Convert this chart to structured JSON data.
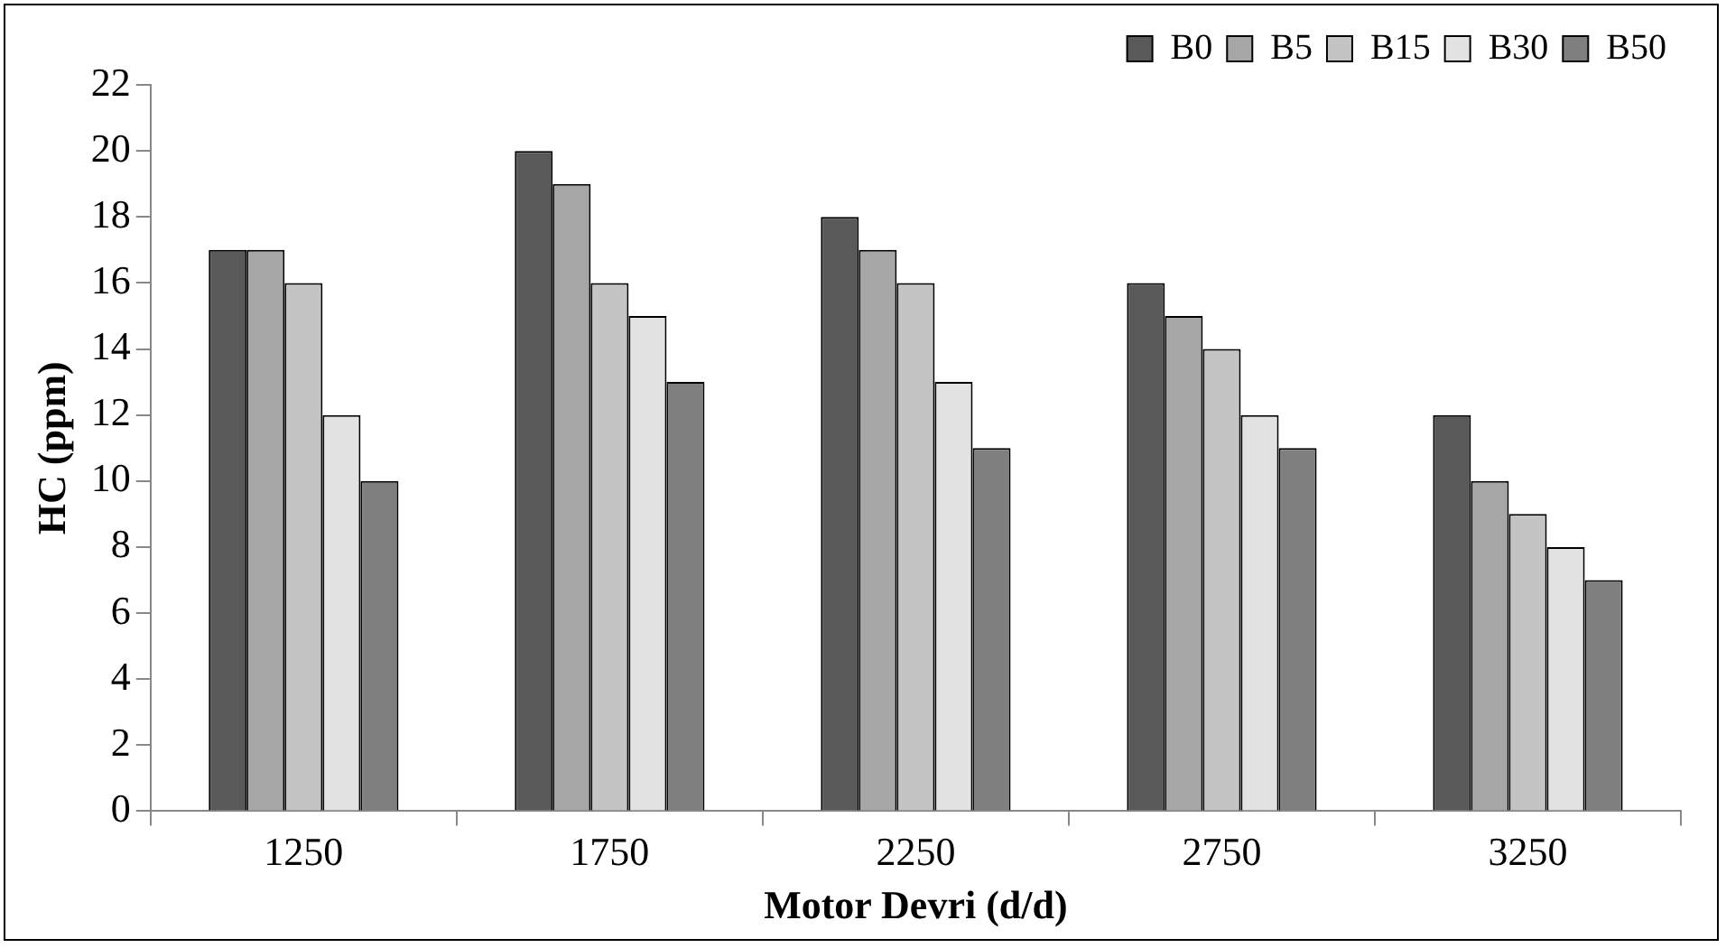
{
  "chart_data": {
    "type": "bar",
    "xlabel": "Motor Devri (d/d)",
    "ylabel": "HC (ppm)",
    "categories": [
      "1250",
      "1750",
      "2250",
      "2750",
      "3250"
    ],
    "series": [
      {
        "name": "B0",
        "color": "#595959",
        "values": [
          17,
          20,
          18,
          16,
          12
        ]
      },
      {
        "name": "B5",
        "color": "#a6a6a6",
        "values": [
          17,
          19,
          17,
          15,
          10
        ]
      },
      {
        "name": "B15",
        "color": "#c4c4c4",
        "values": [
          16,
          16,
          16,
          14,
          9
        ]
      },
      {
        "name": "B30",
        "color": "#e2e2e2",
        "values": [
          12,
          15,
          13,
          12,
          8
        ]
      },
      {
        "name": "B50",
        "color": "#7f7f7f",
        "values": [
          10,
          13,
          11,
          11,
          7
        ]
      }
    ],
    "ylim": [
      0,
      22
    ],
    "yticks": [
      0,
      2,
      4,
      6,
      8,
      10,
      12,
      14,
      16,
      18,
      20,
      22
    ],
    "grid": false,
    "legend": "top right"
  }
}
